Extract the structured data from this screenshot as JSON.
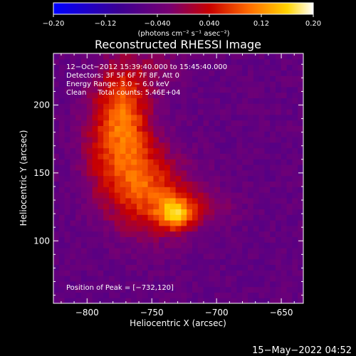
{
  "chart_data": {
    "type": "heatmap",
    "title": "Reconstructed RHESSI Image",
    "xlabel": "Heliocentric X (arcsec)",
    "ylabel": "Heliocentric Y (arcsec)",
    "xlim": [
      -826,
      -633
    ],
    "ylim": [
      54,
      238
    ],
    "xticks": [
      -800,
      -750,
      -700,
      -650
    ],
    "yticks": [
      100,
      150,
      200
    ],
    "xtick_labels": [
      "−800",
      "−750",
      "−700",
      "−650"
    ],
    "ytick_labels": [
      "100",
      "150",
      "200"
    ],
    "colorbar": {
      "range": [
        -0.2,
        0.2
      ],
      "ticks": [
        -0.2,
        -0.12,
        -0.04,
        0.04,
        0.12,
        0.2
      ],
      "tick_labels": [
        "−0.20",
        "−0.12",
        "−0.040",
        "0.040",
        "0.12",
        "0.20"
      ],
      "unit_label": "(photons cm⁻² s⁻¹ asec⁻²)"
    },
    "annotations": [
      "12−Oct−2012 15:39:40.000 to 15:45:40.000",
      "Detectors: 3F 5F 6F 7F 8F, Att 0",
      "Energy Range: 3.0 − 6.0 keV",
      "Clean     Total counts: 5.46E+04"
    ],
    "peak_label": "Position of Peak = [−732,120]",
    "peak": [
      -732,
      120
    ],
    "sources": [
      {
        "x": -732,
        "y": 120,
        "sx": 9,
        "sy": 8,
        "amp": 0.14
      },
      {
        "x": -748,
        "y": 135,
        "sx": 20,
        "sy": 22,
        "amp": 0.11
      },
      {
        "x": -768,
        "y": 165,
        "sx": 14,
        "sy": 28,
        "amp": 0.1
      },
      {
        "x": -772,
        "y": 205,
        "sx": 13,
        "sy": 22,
        "amp": 0.095
      },
      {
        "x": -790,
        "y": 170,
        "sx": 12,
        "sy": 30,
        "amp": 0.06
      },
      {
        "x": -712,
        "y": 125,
        "sx": 18,
        "sy": 10,
        "amp": 0.05
      },
      {
        "x": -745,
        "y": 228,
        "sx": 14,
        "sy": 12,
        "amp": 0.035
      }
    ],
    "background": -0.05
  },
  "timestamp": "15−May−2022 04:52"
}
